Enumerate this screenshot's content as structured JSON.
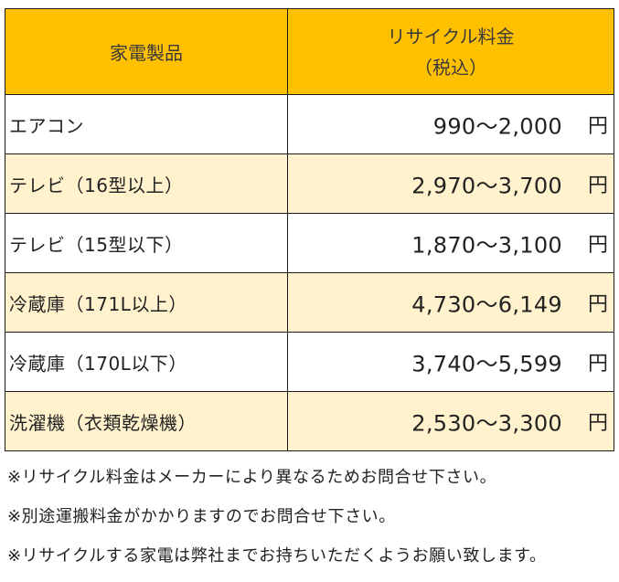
{
  "table": {
    "header": {
      "product": "家電製品",
      "price_line1": "リサイクル料金",
      "price_line2": "（税込）"
    },
    "rows": [
      {
        "product": "エアコン",
        "price": "990～2,000",
        "unit": "円"
      },
      {
        "product": "テレビ（16型以上）",
        "price": "2,970～3,700",
        "unit": "円"
      },
      {
        "product": "テレビ（15型以下）",
        "price": "1,870～3,100",
        "unit": "円"
      },
      {
        "product": "冷蔵庫（171L以上）",
        "price": "4,730～6,149",
        "unit": "円"
      },
      {
        "product": "冷蔵庫（170L以下）",
        "price": "3,740～5,599",
        "unit": "円"
      },
      {
        "product": "洗濯機（衣類乾燥機）",
        "price": "2,530～3,300",
        "unit": "円"
      }
    ]
  },
  "notes": [
    "※リサイクル料金はメーカーにより異なるためお問合せ下さい。",
    "※別途運搬料金がかかりますのでお問合せ下さい。",
    "※リサイクルする家電は弊社までお持ちいただくようお願い致します。"
  ],
  "colors": {
    "header_bg": "#ffc000",
    "alt_row_bg": "#fff2cc",
    "border": "#1a1a1a"
  }
}
